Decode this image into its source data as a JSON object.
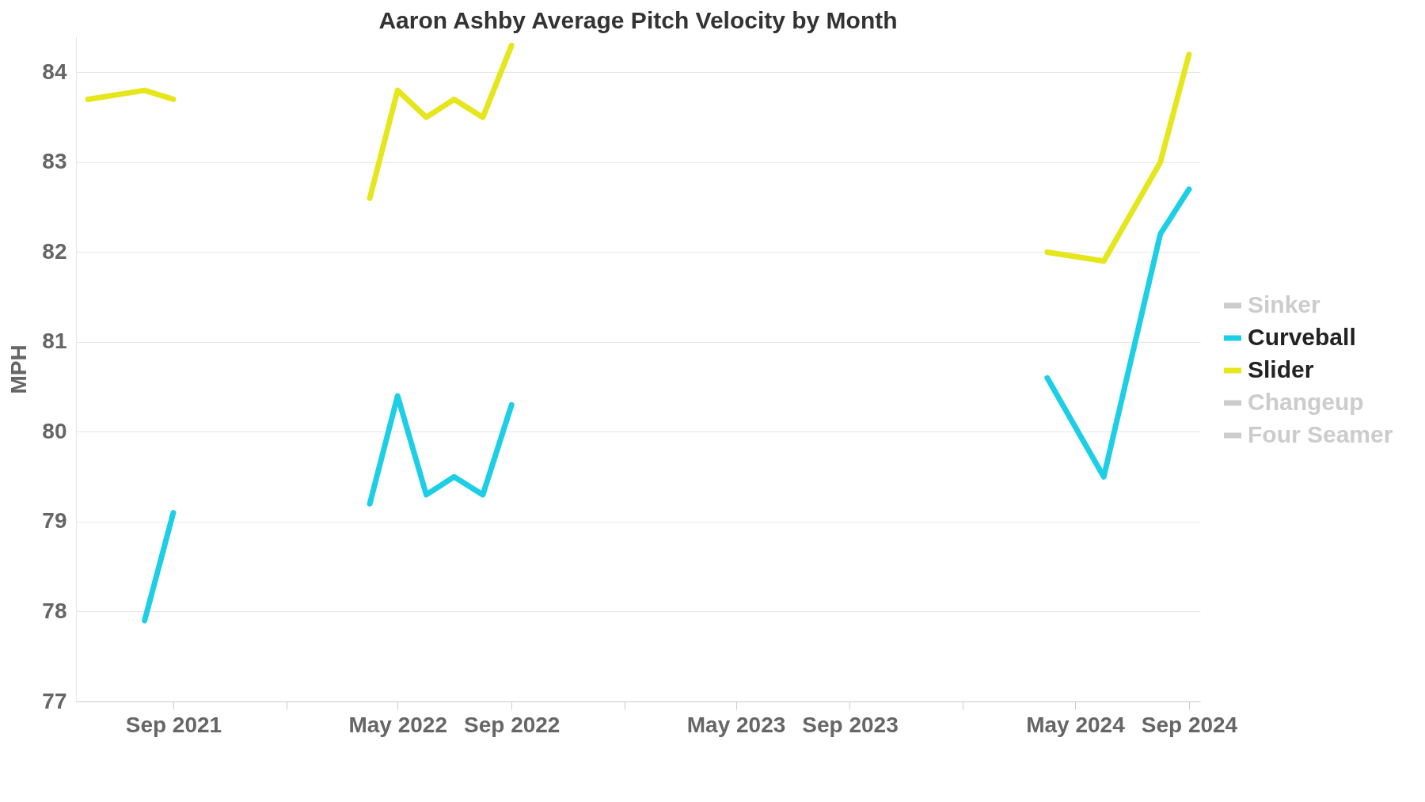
{
  "chart_data": {
    "type": "line",
    "title": "Aaron Ashby Average Pitch Velocity by Month",
    "ylabel": "MPH",
    "x": [
      "2021-06",
      "2021-08",
      "2021-09",
      "2021-12",
      "2022-04",
      "2022-05",
      "2022-06",
      "2022-07",
      "2022-08",
      "2022-09",
      "2023-06",
      "2024-04",
      "2024-06",
      "2024-08",
      "2024-09"
    ],
    "series": [
      {
        "name": "Sinker",
        "color": "#cccccc",
        "values": [
          null,
          null,
          null,
          null,
          null,
          null,
          null,
          null,
          null,
          null,
          null,
          null,
          null,
          null,
          null
        ]
      },
      {
        "name": "Curveball",
        "color": "#1ccfe6",
        "values": [
          null,
          77.9,
          79.1,
          null,
          79.2,
          80.4,
          79.3,
          79.5,
          79.3,
          80.3,
          null,
          80.6,
          79.5,
          82.2,
          82.7
        ]
      },
      {
        "name": "Slider",
        "color": "#e6e61c",
        "values": [
          83.7,
          83.8,
          83.7,
          null,
          82.6,
          83.8,
          83.5,
          83.7,
          83.5,
          84.3,
          null,
          82.0,
          81.9,
          83.0,
          84.2
        ]
      },
      {
        "name": "Changeup",
        "color": "#cccccc",
        "values": [
          null,
          null,
          null,
          null,
          null,
          null,
          null,
          null,
          null,
          null,
          null,
          null,
          null,
          null,
          null
        ]
      },
      {
        "name": "Four Seamer",
        "color": "#cccccc",
        "values": [
          null,
          null,
          null,
          null,
          null,
          null,
          null,
          null,
          null,
          null,
          null,
          null,
          null,
          null,
          null
        ]
      }
    ],
    "xlim": [
      "2021-05-19",
      "2024-09-13"
    ],
    "xticks": [
      {
        "value": "2021-09",
        "label": "Sep 2021"
      },
      {
        "value": "2022-01",
        "label": null
      },
      {
        "value": "2022-05",
        "label": "May 2022"
      },
      {
        "value": "2022-09",
        "label": "Sep 2022"
      },
      {
        "value": "2023-01",
        "label": null
      },
      {
        "value": "2023-05",
        "label": "May 2023"
      },
      {
        "value": "2023-09",
        "label": "Sep 2023"
      },
      {
        "value": "2024-01",
        "label": null
      },
      {
        "value": "2024-05",
        "label": "May 2024"
      },
      {
        "value": "2024-09",
        "label": "Sep 2024"
      }
    ],
    "ylim": [
      77,
      84.4
    ],
    "yticks": [
      77,
      78,
      79,
      80,
      81,
      82,
      83,
      84
    ],
    "grid": "y",
    "legend": "right",
    "marker": "none",
    "line_style": "solid"
  }
}
